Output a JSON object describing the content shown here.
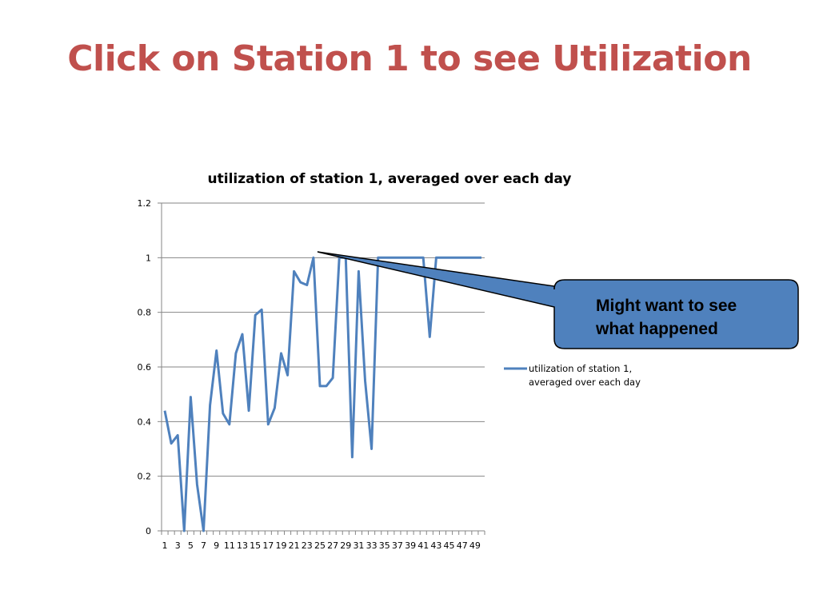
{
  "slide": {
    "title": "Click on Station 1 to see Utilization"
  },
  "callout": {
    "lines": [
      "Might want to see",
      "what happened"
    ],
    "fill_color": "#4f81bd",
    "border_color": "#000000"
  },
  "colors": {
    "title": "#c0504d",
    "series": "#4f81bd",
    "gridline": "#868686"
  },
  "chart_data": {
    "type": "line",
    "title": "utilization of station 1, averaged over each day",
    "xlabel": "",
    "ylabel": "",
    "ylim": [
      0,
      1.2
    ],
    "y_ticks": [
      "0",
      "0.2",
      "0.4",
      "0.6",
      "0.8",
      "1",
      "1.2"
    ],
    "x": [
      1,
      2,
      3,
      4,
      5,
      6,
      7,
      8,
      9,
      10,
      11,
      12,
      13,
      14,
      15,
      16,
      17,
      18,
      19,
      20,
      21,
      22,
      23,
      24,
      25,
      26,
      27,
      28,
      29,
      30,
      31,
      32,
      33,
      34,
      35,
      36,
      37,
      38,
      39,
      40,
      41,
      42,
      43,
      44,
      45,
      46,
      47,
      48,
      49,
      50
    ],
    "x_tick_labels": [
      "1",
      "3",
      "5",
      "7",
      "9",
      "11",
      "13",
      "15",
      "17",
      "19",
      "21",
      "23",
      "25",
      "27",
      "29",
      "31",
      "33",
      "35",
      "37",
      "39",
      "41",
      "43",
      "45",
      "47",
      "49"
    ],
    "grid": true,
    "legend_position": "right",
    "series": [
      {
        "name": "utilization of station 1, averaged over each day",
        "values": [
          0.44,
          0.32,
          0.35,
          0.0,
          0.49,
          0.17,
          0.0,
          0.46,
          0.66,
          0.43,
          0.39,
          0.65,
          0.72,
          0.44,
          0.79,
          0.81,
          0.39,
          0.45,
          0.65,
          0.57,
          0.95,
          0.91,
          0.9,
          1.0,
          0.53,
          0.53,
          0.56,
          1.0,
          1.0,
          0.27,
          0.95,
          0.55,
          0.3,
          1.0,
          1.0,
          1.0,
          1.0,
          1.0,
          1.0,
          1.0,
          1.0,
          0.71,
          1.0,
          1.0,
          1.0,
          1.0,
          1.0,
          1.0,
          1.0,
          1.0
        ]
      }
    ]
  }
}
